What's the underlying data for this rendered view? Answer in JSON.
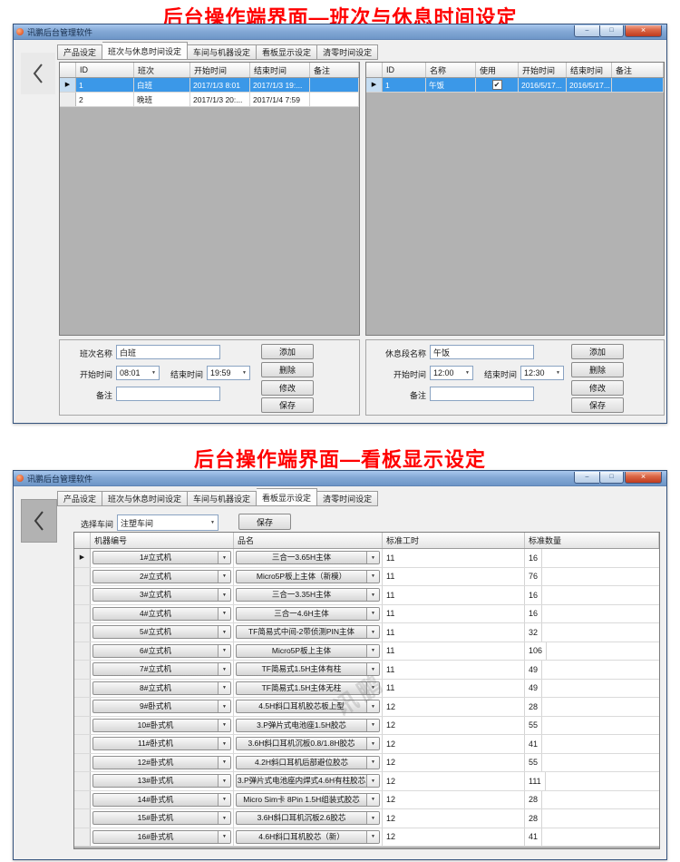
{
  "titles": {
    "top": "后台操作端界面—班次与休息时间设定",
    "bottom": "后台操作端界面—看板显示设定",
    "color": "#ff0000"
  },
  "app": {
    "window_title": "讯鹏后台管理软件",
    "caption": {
      "minimize": "–",
      "maximize": "□",
      "close": "×"
    },
    "tabs": [
      "产品设定",
      "班次与休息时间设定",
      "车间与机器设定",
      "看板显示设定",
      "清零时间设定"
    ]
  },
  "icons": {
    "back": "chevron-left",
    "row_pointer": "▶",
    "dropdown": "▼",
    "check": "✔"
  },
  "shift_screen": {
    "active_tab_index": 1,
    "shift_table": {
      "headers": [
        "ID",
        "班次",
        "开始时间",
        "结束时间",
        "备注"
      ],
      "rows": [
        {
          "selected": true,
          "cells": [
            "1",
            "白班",
            "2017/1/3 8:01",
            "2017/1/3 19:...",
            ""
          ]
        },
        {
          "selected": false,
          "cells": [
            "2",
            "晚班",
            "2017/1/3 20:...",
            "2017/1/4 7:59",
            ""
          ]
        }
      ]
    },
    "rest_table": {
      "headers": [
        "ID",
        "名称",
        "使用",
        "开始时间",
        "结束时间",
        "备注"
      ],
      "rows": [
        {
          "selected": true,
          "checked": true,
          "cells": [
            "1",
            "午饭",
            "2016/5/17...",
            "2016/5/17...",
            ""
          ]
        }
      ]
    },
    "shift_form": {
      "name_label": "班次名称",
      "name_value": "白班",
      "start_label": "开始时间",
      "start_value": "08:01",
      "end_label": "结束时间",
      "end_value": "19:59",
      "note_label": "备注",
      "note_value": "",
      "buttons": [
        "添加",
        "删除",
        "修改",
        "保存"
      ]
    },
    "rest_form": {
      "name_label": "休息段名称",
      "name_value": "午饭",
      "start_label": "开始时间",
      "start_value": "12:00",
      "end_label": "结束时间",
      "end_value": "12:30",
      "note_label": "备注",
      "note_value": "",
      "buttons": [
        "添加",
        "删除",
        "修改",
        "保存"
      ]
    }
  },
  "kanban_screen": {
    "active_tab_index": 3,
    "workshop": {
      "label": "选择车间",
      "value": "注塑车间",
      "save": "保存"
    },
    "machine_table": {
      "headers": [
        "机器编号",
        "品名",
        "标准工时",
        "标准数量"
      ],
      "rows": [
        [
          "1#立式机",
          "三合一3.65H主体",
          "11",
          "16"
        ],
        [
          "2#立式机",
          "Micro5P板上主体（新模）",
          "11",
          "76"
        ],
        [
          "3#立式机",
          "三合一3.35H主体",
          "11",
          "16"
        ],
        [
          "4#立式机",
          "三合一4.6H主体",
          "11",
          "16"
        ],
        [
          "5#立式机",
          "TF简易式中间-2带侦测PIN主体",
          "11",
          "32"
        ],
        [
          "6#立式机",
          "Micro5P板上主体",
          "11",
          "106"
        ],
        [
          "7#立式机",
          "TF简易式1.5H主体有柱",
          "11",
          "49"
        ],
        [
          "8#立式机",
          "TF简易式1.5H主体无柱",
          "11",
          "49"
        ],
        [
          "9#卧式机",
          "4.5H斜口耳机胶芯板上型",
          "12",
          "28"
        ],
        [
          "10#卧式机",
          "3.P弹片式电池座1.5H胶芯",
          "12",
          "55"
        ],
        [
          "11#卧式机",
          "3.6H斜口耳机沉板0.8/1.8H胶芯",
          "12",
          "41"
        ],
        [
          "12#卧式机",
          "4.2H斜口耳机后部避位胶芯",
          "12",
          "55"
        ],
        [
          "13#卧式机",
          "3.P弹片式电池座内焊式4.6H有柱胶芯",
          "12",
          "111"
        ],
        [
          "14#卧式机",
          "Micro Sim卡 8Pin 1.5H组装式胶芯",
          "12",
          "28"
        ],
        [
          "15#卧式机",
          "3.6H斜口耳机沉板2.6胶芯",
          "12",
          "28"
        ],
        [
          "16#卧式机",
          "4.6H斜口耳机胶芯（新）",
          "12",
          "41"
        ]
      ]
    },
    "watermark": "讯鹏"
  }
}
